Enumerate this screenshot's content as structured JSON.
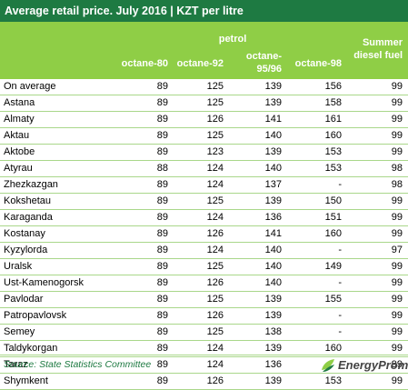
{
  "title": "Average retail price. July 2016 | KZT per litre",
  "header": {
    "group": "petrol",
    "col_o80": "octane-80",
    "col_o92": "octane-92",
    "col_o95_l1": "octane-",
    "col_o95_l2": "95/96",
    "col_o98": "octane-98",
    "col_diesel_l1": "Summer",
    "col_diesel_l2": "diesel fuel"
  },
  "chart_data": {
    "type": "table",
    "title": "Average retail price. July 2016 | KZT per litre",
    "columns": [
      "octane-80",
      "octane-92",
      "octane-95/96",
      "octane-98",
      "Summer diesel fuel"
    ],
    "rows": [
      {
        "city": "On average",
        "values": [
          "89",
          "125",
          "139",
          "156",
          "99"
        ]
      },
      {
        "city": "Astana",
        "values": [
          "89",
          "125",
          "139",
          "158",
          "99"
        ]
      },
      {
        "city": "Almaty",
        "values": [
          "89",
          "126",
          "141",
          "161",
          "99"
        ]
      },
      {
        "city": "Aktau",
        "values": [
          "89",
          "125",
          "140",
          "160",
          "99"
        ]
      },
      {
        "city": "Aktobe",
        "values": [
          "89",
          "123",
          "139",
          "153",
          "99"
        ]
      },
      {
        "city": "Atyrau",
        "values": [
          "88",
          "124",
          "140",
          "153",
          "98"
        ]
      },
      {
        "city": "Zhezkazgan",
        "values": [
          "89",
          "124",
          "137",
          "-",
          "98"
        ]
      },
      {
        "city": "Kokshetau",
        "values": [
          "89",
          "125",
          "139",
          "150",
          "99"
        ]
      },
      {
        "city": "Karaganda",
        "values": [
          "89",
          "124",
          "136",
          "151",
          "99"
        ]
      },
      {
        "city": "Kostanay",
        "values": [
          "89",
          "126",
          "141",
          "160",
          "99"
        ]
      },
      {
        "city": "Kyzylorda",
        "values": [
          "89",
          "124",
          "140",
          "-",
          "97"
        ]
      },
      {
        "city": "Uralsk",
        "values": [
          "89",
          "125",
          "140",
          "149",
          "99"
        ]
      },
      {
        "city": "Ust-Kamenogorsk",
        "values": [
          "89",
          "126",
          "140",
          "-",
          "99"
        ]
      },
      {
        "city": "Pavlodar",
        "values": [
          "89",
          "125",
          "139",
          "155",
          "99"
        ]
      },
      {
        "city": "Patropavlovsk",
        "values": [
          "89",
          "126",
          "139",
          "-",
          "99"
        ]
      },
      {
        "city": "Semey",
        "values": [
          "89",
          "125",
          "138",
          "-",
          "99"
        ]
      },
      {
        "city": "Taldykorgan",
        "values": [
          "89",
          "124",
          "139",
          "160",
          "99"
        ]
      },
      {
        "city": "Taraz",
        "values": [
          "89",
          "124",
          "136",
          "-",
          "99"
        ]
      },
      {
        "city": "Shymkent",
        "values": [
          "89",
          "126",
          "139",
          "153",
          "99"
        ]
      }
    ]
  },
  "colors": {
    "title_bg": "#1e7a42",
    "header_bg": "#8fce46",
    "row_rule": "#a9d78a",
    "source_text": "#1e7a42"
  },
  "source": "Source: State Statistics Committee",
  "logo": {
    "text": "EnergyProm",
    "icon": "energyprom-leaf-icon"
  }
}
